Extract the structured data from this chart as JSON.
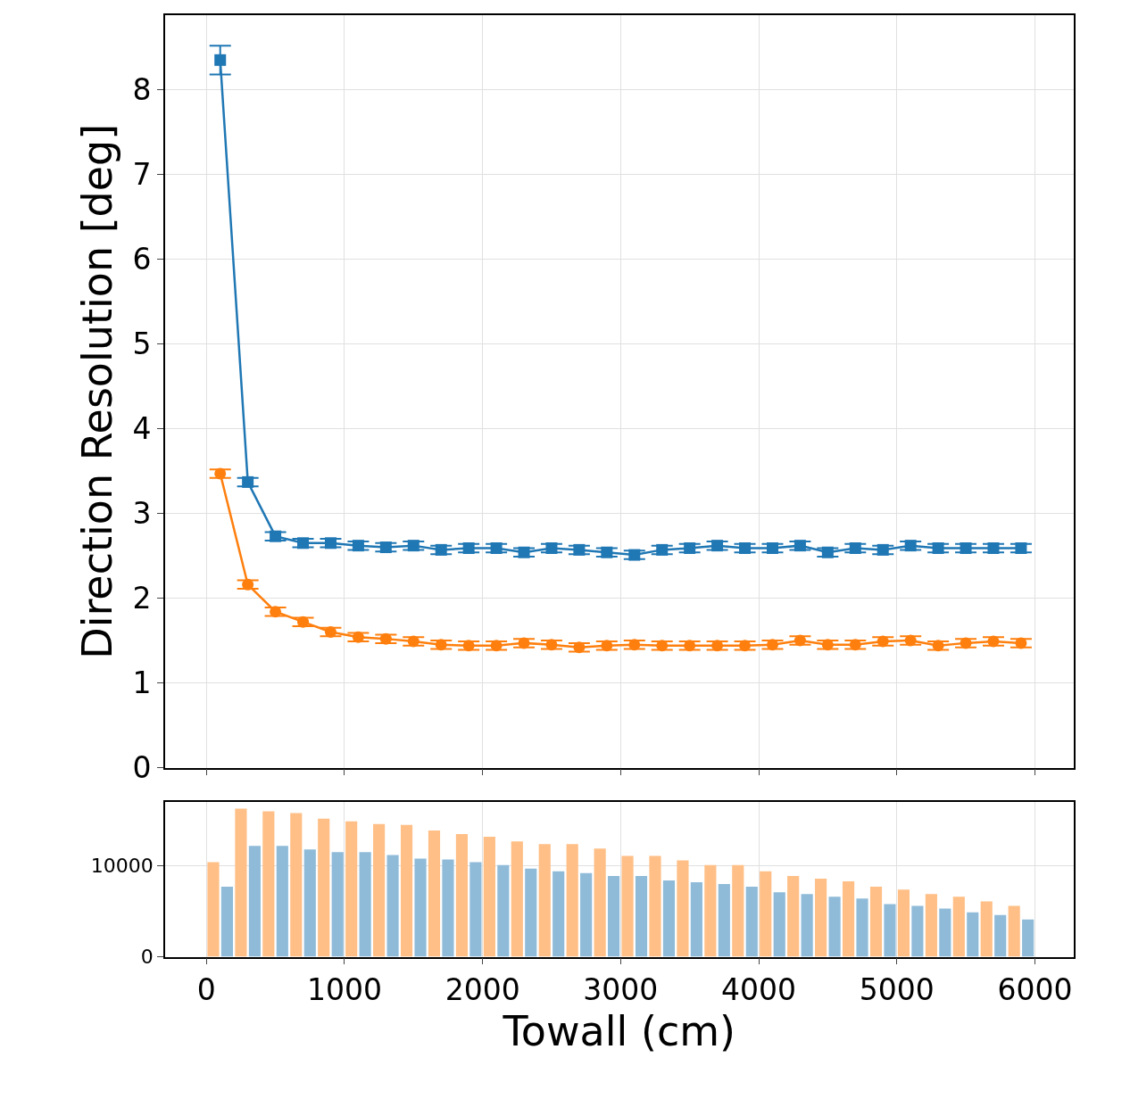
{
  "chart_data": [
    {
      "type": "line",
      "ylabel": "Direction Resolution [deg]",
      "x": [
        100,
        300,
        500,
        700,
        900,
        1100,
        1300,
        1500,
        1700,
        1900,
        2100,
        2300,
        2500,
        2700,
        2900,
        3100,
        3300,
        3500,
        3700,
        3900,
        4100,
        4300,
        4500,
        4700,
        4900,
        5100,
        5300,
        5500,
        5700,
        5900
      ],
      "xlim": [
        -300,
        6280
      ],
      "xticks": [
        0,
        1000,
        2000,
        3000,
        4000,
        5000,
        6000
      ],
      "ylim": [
        0,
        8.88
      ],
      "yticks": [
        0,
        1,
        2,
        3,
        4,
        5,
        6,
        7,
        8
      ],
      "grid": true,
      "tick_labels": "y",
      "series": [
        {
          "color": "#1f77b4",
          "marker": "square",
          "values": [
            8.35,
            3.37,
            2.73,
            2.65,
            2.65,
            2.62,
            2.6,
            2.62,
            2.57,
            2.59,
            2.59,
            2.54,
            2.59,
            2.57,
            2.54,
            2.51,
            2.57,
            2.59,
            2.62,
            2.59,
            2.59,
            2.62,
            2.54,
            2.59,
            2.57,
            2.62,
            2.59,
            2.59,
            2.59,
            2.59
          ],
          "errors": [
            0.17,
            0.05,
            0.05,
            0.05,
            0.05,
            0.05,
            0.05,
            0.05,
            0.05,
            0.05,
            0.05,
            0.05,
            0.05,
            0.05,
            0.05,
            0.05,
            0.05,
            0.05,
            0.05,
            0.05,
            0.05,
            0.05,
            0.05,
            0.05,
            0.05,
            0.05,
            0.05,
            0.05,
            0.05,
            0.05
          ]
        },
        {
          "color": "#ff7f0e",
          "marker": "circle",
          "values": [
            3.47,
            2.16,
            1.84,
            1.72,
            1.6,
            1.54,
            1.52,
            1.49,
            1.45,
            1.44,
            1.44,
            1.47,
            1.45,
            1.42,
            1.44,
            1.45,
            1.44,
            1.44,
            1.44,
            1.44,
            1.45,
            1.5,
            1.45,
            1.45,
            1.49,
            1.5,
            1.44,
            1.47,
            1.49,
            1.47
          ],
          "errors": [
            0.05,
            0.05,
            0.05,
            0.05,
            0.05,
            0.05,
            0.05,
            0.05,
            0.05,
            0.05,
            0.05,
            0.05,
            0.05,
            0.05,
            0.05,
            0.05,
            0.05,
            0.05,
            0.05,
            0.05,
            0.05,
            0.05,
            0.05,
            0.05,
            0.05,
            0.05,
            0.05,
            0.05,
            0.05,
            0.05
          ]
        }
      ]
    },
    {
      "type": "histogram",
      "xlabel": "Towall (cm)",
      "bins": [
        0,
        200,
        400,
        600,
        800,
        1000,
        1200,
        1400,
        1600,
        1800,
        2000,
        2200,
        2400,
        2600,
        2800,
        3000,
        3200,
        3400,
        3600,
        3800,
        4000,
        4200,
        4400,
        4600,
        4800,
        5000,
        5200,
        5400,
        5600,
        5800,
        6000
      ],
      "xlim": [
        -300,
        6280
      ],
      "xticks": [
        0,
        1000,
        2000,
        3000,
        4000,
        5000,
        6000
      ],
      "ylim": [
        0,
        17000
      ],
      "yticks": [
        0,
        10000
      ],
      "grid": true,
      "series": [
        {
          "color": "#ffbf86",
          "values": [
            10400,
            16300,
            16000,
            15800,
            15200,
            14900,
            14600,
            14500,
            13900,
            13500,
            13200,
            12700,
            12400,
            12400,
            11900,
            11100,
            11100,
            10600,
            10100,
            10100,
            9400,
            8900,
            8600,
            8300,
            7700,
            7400,
            6900,
            6600,
            6100,
            5600
          ]
        },
        {
          "color": "#8fbbd9",
          "values": [
            7700,
            12200,
            12200,
            11800,
            11500,
            11500,
            11200,
            10800,
            10700,
            10400,
            10100,
            9700,
            9400,
            9200,
            8900,
            8900,
            8400,
            8200,
            8000,
            7700,
            7100,
            6900,
            6600,
            6400,
            5800,
            5600,
            5300,
            4900,
            4600,
            4100
          ]
        }
      ]
    }
  ]
}
